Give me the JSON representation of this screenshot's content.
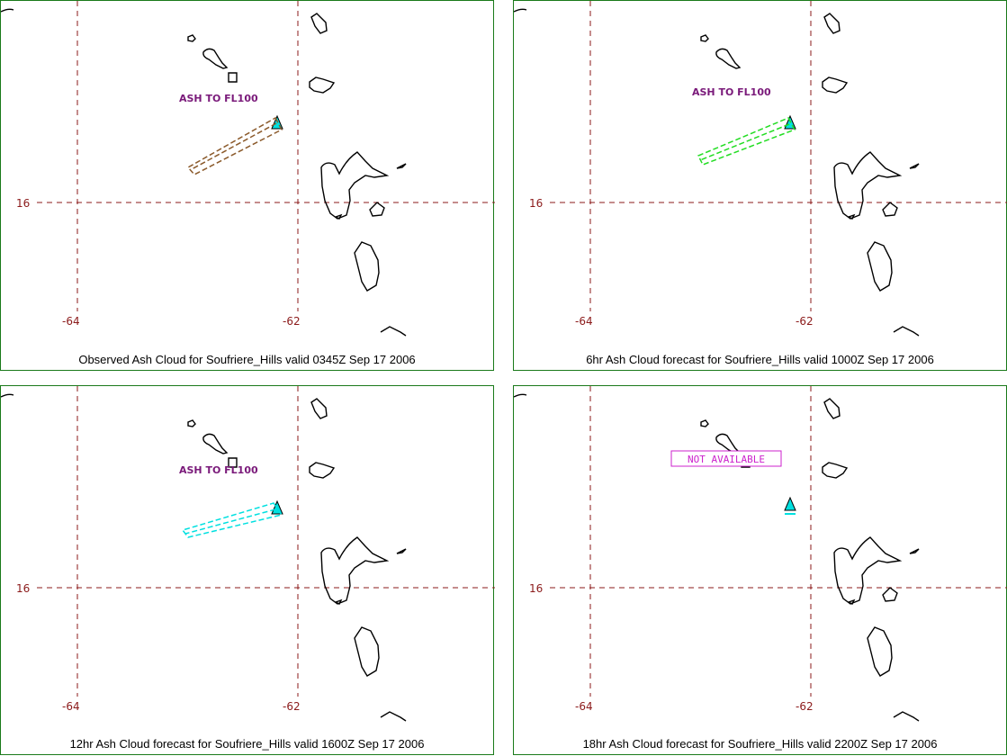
{
  "volcano": "Soufriere_Hills",
  "grid": {
    "lon_labels": [
      "-64",
      "-62"
    ],
    "lat_labels": [
      "16"
    ]
  },
  "colors": {
    "grid": "#8b1a1a",
    "frame": "#1a7a1a",
    "coast": "#000000",
    "volcano_symbol": "#00e0e0",
    "obs_cloud": "#8b5a2b",
    "fc6_cloud": "#22dd22",
    "fc12_cloud": "#00e0e0",
    "label": "#7a1a7a",
    "not_available": "#cc22cc"
  },
  "panels": [
    {
      "caption": "Observed Ash Cloud for Soufriere_Hills valid 0345Z Sep 17 2006",
      "ash_label": "ASH TO FL100",
      "status": ""
    },
    {
      "caption": "6hr Ash Cloud forecast for Soufriere_Hills valid 1000Z Sep 17 2006",
      "ash_label": "ASH TO FL100",
      "status": ""
    },
    {
      "caption": "12hr Ash Cloud forecast for Soufriere_Hills valid 1600Z Sep 17 2006",
      "ash_label": "ASH TO FL100",
      "status": ""
    },
    {
      "caption": "18hr Ash Cloud forecast for Soufriere_Hills valid 2200Z Sep 17 2006",
      "ash_label": "",
      "status": "NOT AVAILABLE"
    }
  ]
}
